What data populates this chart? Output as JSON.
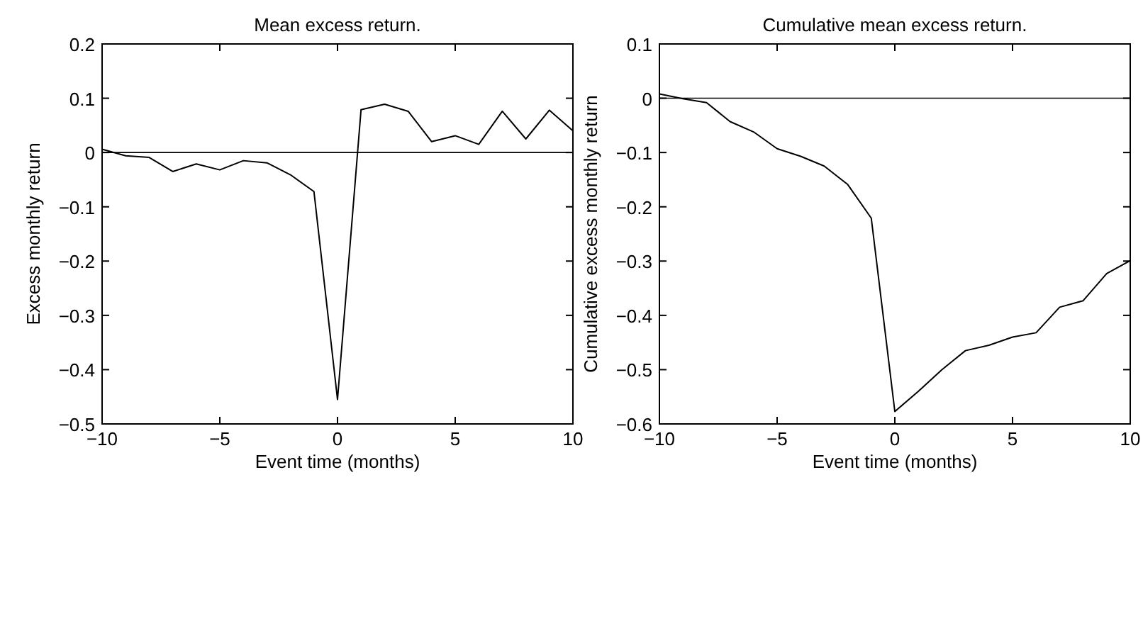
{
  "chart_data": [
    {
      "type": "line",
      "title": "Mean excess return.",
      "xlabel": "Event time (months)",
      "ylabel": "Excess monthly return",
      "x": [
        -10,
        -9,
        -8,
        -7,
        -6,
        -5,
        -4,
        -3,
        -2,
        -1,
        0,
        1,
        2,
        3,
        4,
        5,
        6,
        7,
        8,
        9,
        10
      ],
      "series": [
        {
          "color": "#000000",
          "values": [
            0.006,
            -0.006,
            -0.009,
            -0.035,
            -0.021,
            -0.032,
            -0.015,
            -0.019,
            -0.041,
            -0.072,
            -0.455,
            0.079,
            0.089,
            0.076,
            0.02,
            0.031,
            0.015,
            0.076,
            0.025,
            0.078,
            0.04
          ]
        }
      ],
      "xlim": [
        -10,
        10
      ],
      "xticks": [
        -10,
        -5,
        0,
        5,
        10
      ],
      "ylim": [
        -0.5,
        0.2
      ],
      "yticks": [
        -0.5,
        -0.4,
        -0.3,
        -0.2,
        -0.1,
        0,
        0.1,
        0.2
      ],
      "ref_lines": [
        {
          "axis": "y",
          "value": 0,
          "color": "#000000"
        }
      ]
    },
    {
      "type": "line",
      "title": "Cumulative mean excess return.",
      "xlabel": "Event time (months)",
      "ylabel": "Cumulative excess monthly return",
      "x": [
        -10,
        -9,
        -8,
        -7,
        -6,
        -5,
        -4,
        -3,
        -2,
        -1,
        0,
        1,
        2,
        3,
        4,
        5,
        6,
        7,
        8,
        9,
        10
      ],
      "series": [
        {
          "color": "#000000",
          "values": [
            0.008,
            -0.001,
            -0.008,
            -0.043,
            -0.062,
            -0.093,
            -0.107,
            -0.125,
            -0.159,
            -0.221,
            -0.577,
            -0.54,
            -0.5,
            -0.465,
            -0.455,
            -0.44,
            -0.432,
            -0.385,
            -0.373,
            -0.323,
            -0.299
          ]
        }
      ],
      "xlim": [
        -10,
        10
      ],
      "xticks": [
        -10,
        -5,
        0,
        5,
        10
      ],
      "ylim": [
        -0.6,
        0.1
      ],
      "yticks": [
        -0.6,
        -0.5,
        -0.4,
        -0.3,
        -0.2,
        -0.1,
        0,
        0.1
      ],
      "ref_lines": [
        {
          "axis": "y",
          "value": 0,
          "color": "#000000"
        }
      ]
    }
  ]
}
